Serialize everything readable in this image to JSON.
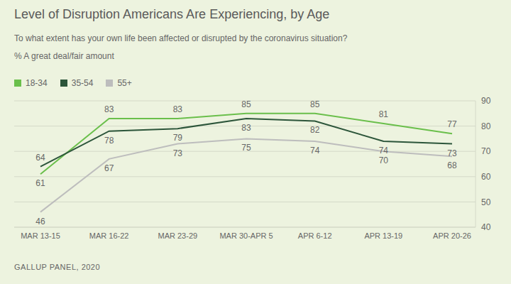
{
  "chart_data": {
    "type": "line",
    "title": "Level of Disruption Americans Are Experiencing, by Age",
    "subtitle": "To what extent has your own life been affected or disrupted by the coronavirus situation?",
    "y_label": "% A great deal/fair amount",
    "source": "GALLUP PANEL, 2020",
    "categories": [
      "MAR 13-15",
      "MAR 16-22",
      "MAR 23-29",
      "MAR 30-APR 5",
      "APR 6-12",
      "APR 13-19",
      "APR 20-26"
    ],
    "series": [
      {
        "name": "18-34",
        "color": "#6abf4b",
        "values": [
          61,
          83,
          83,
          85,
          85,
          81,
          77
        ]
      },
      {
        "name": "35-54",
        "color": "#2c553a",
        "values": [
          64,
          78,
          79,
          83,
          82,
          74,
          73
        ]
      },
      {
        "name": "55+",
        "color": "#bdbdbd",
        "values": [
          46,
          67,
          73,
          75,
          74,
          70,
          68
        ]
      }
    ],
    "ylim": [
      40,
      90
    ],
    "yticks": [
      40,
      50,
      60,
      70,
      80,
      90
    ],
    "grid": true,
    "legend": "top-left",
    "data_labels": true
  }
}
